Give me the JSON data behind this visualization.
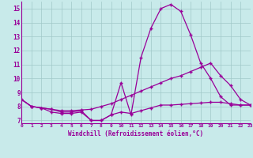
{
  "x": [
    0,
    1,
    2,
    3,
    4,
    5,
    6,
    7,
    8,
    9,
    10,
    11,
    12,
    13,
    14,
    15,
    16,
    17,
    18,
    19,
    20,
    21,
    22,
    23
  ],
  "line1": [
    8.5,
    8.0,
    7.9,
    7.8,
    7.6,
    7.6,
    7.7,
    7.0,
    7.0,
    7.4,
    9.7,
    7.4,
    11.5,
    13.6,
    15.0,
    15.3,
    14.8,
    13.1,
    11.1,
    10.0,
    8.7,
    8.1,
    8.1,
    8.1
  ],
  "line2": [
    8.5,
    8.0,
    7.9,
    7.8,
    7.7,
    7.7,
    7.75,
    7.8,
    8.0,
    8.2,
    8.5,
    8.8,
    9.1,
    9.4,
    9.7,
    10.0,
    10.2,
    10.5,
    10.8,
    11.1,
    10.2,
    9.5,
    8.5,
    8.1
  ],
  "line3": [
    8.5,
    8.0,
    7.9,
    7.6,
    7.5,
    7.5,
    7.6,
    7.0,
    7.0,
    7.4,
    7.6,
    7.5,
    7.7,
    7.9,
    8.1,
    8.1,
    8.15,
    8.2,
    8.25,
    8.3,
    8.3,
    8.2,
    8.1,
    8.1
  ],
  "line_color": "#990099",
  "bg_color": "#c8eaea",
  "grid_color": "#a0c8c8",
  "xlabel": "Windchill (Refroidissement éolien,°C)",
  "xlim": [
    0,
    23
  ],
  "ylim": [
    6.8,
    15.5
  ],
  "yticks": [
    7,
    8,
    9,
    10,
    11,
    12,
    13,
    14,
    15
  ],
  "xticks": [
    0,
    1,
    2,
    3,
    4,
    5,
    6,
    7,
    8,
    9,
    10,
    11,
    12,
    13,
    14,
    15,
    16,
    17,
    18,
    19,
    20,
    21,
    22,
    23
  ]
}
